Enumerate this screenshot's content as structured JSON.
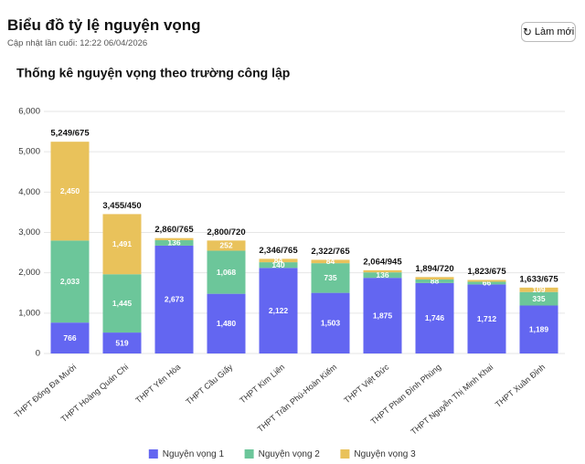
{
  "header": {
    "title": "Biểu đồ tỷ lệ nguyện vọng",
    "subtitle": "Cập nhật lần cuối: 12:22 06/04/2026",
    "refresh_button": "Làm mới"
  },
  "chart_data": {
    "type": "stacked-bar",
    "title": "Thống kê nguyện vọng theo trường công lập",
    "categories": [
      "THPT Đống Đa Mười",
      "THPT Hoàng Quán Chi",
      "THPT Yên Hòa",
      "THPT Cầu Giấy",
      "THPT Kim Liên",
      "THPT Trần Phú-Hoàn Kiếm",
      "THPT Việt Đức",
      "THPT Phan Đình Phùng",
      "THPT Nguyễn Thị Minh Khai",
      "THPT Xuân Đỉnh"
    ],
    "series": [
      {
        "name": "Nguyện vọng 1",
        "color": "#6366f1",
        "values": [
          766,
          519,
          2673,
          1480,
          2122,
          1503,
          1875,
          1746,
          1712,
          1189
        ],
        "value_labels": [
          "766",
          "519",
          "2,673",
          "1,480",
          "2,122",
          "1,503",
          "1,875",
          "1,746",
          "1,712",
          "1,189"
        ]
      },
      {
        "name": "Nguyện vọng 2",
        "color": "#6cc69a",
        "values": [
          2033,
          1445,
          136,
          1068,
          140,
          735,
          136,
          88,
          66,
          335
        ],
        "value_labels": [
          "2,033",
          "1,445",
          "136",
          "1,068",
          "140",
          "735",
          "136",
          "88",
          "66",
          "335"
        ]
      },
      {
        "name": "Nguyện vọng 3",
        "color": "#e9c25b",
        "values": [
          2450,
          1491,
          51,
          252,
          84,
          84,
          53,
          60,
          45,
          109
        ],
        "value_labels": [
          "2,450",
          "1,491",
          null,
          "252",
          "84",
          "84",
          null,
          null,
          null,
          "109"
        ]
      }
    ],
    "total_labels": [
      "5,249/675",
      "3,455/450",
      "2,860/765",
      "2,800/720",
      "2,346/765",
      "2,322/765",
      "2,064/945",
      "1,894/720",
      "1,823/675",
      "1,633/675"
    ],
    "ylim": [
      0,
      6000
    ],
    "yticks": [
      0,
      {
        "value": 1000,
        "label": "1,000"
      },
      {
        "value": 2000,
        "label": "2,000"
      },
      {
        "value": 3000,
        "label": "3,000"
      },
      {
        "value": 4000,
        "label": "4,000"
      },
      {
        "value": 5000,
        "label": "5,000"
      },
      {
        "value": 6000,
        "label": "6,000"
      }
    ],
    "grid": true,
    "legend": "bottom"
  }
}
